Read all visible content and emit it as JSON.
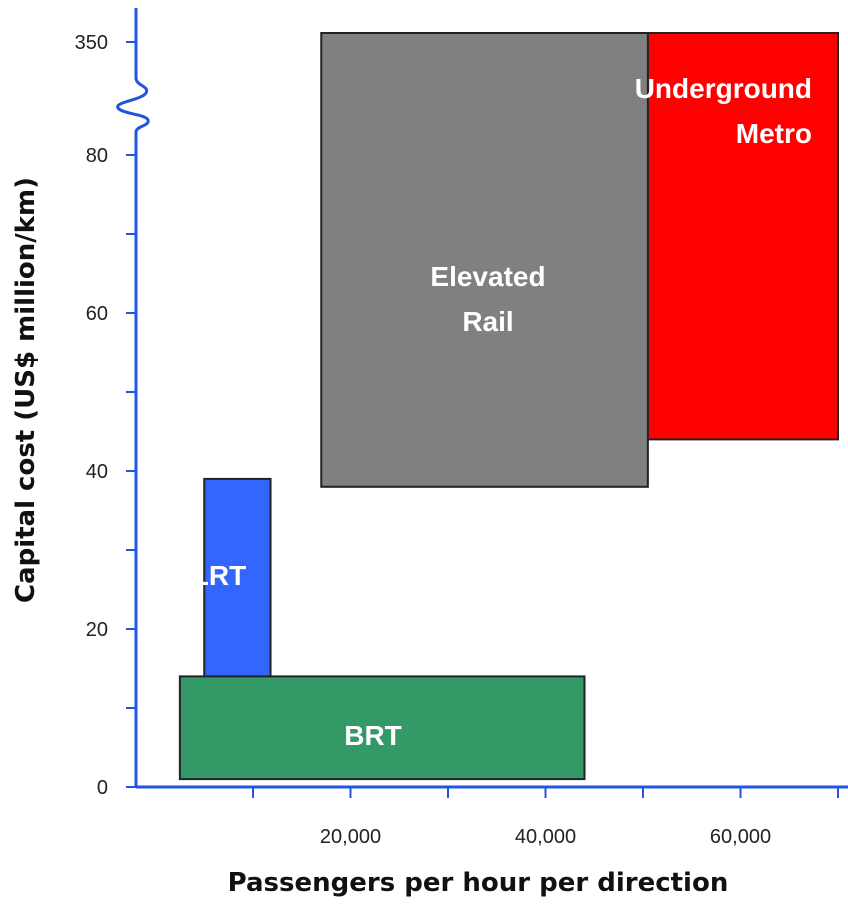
{
  "chart_data": {
    "type": "range-box",
    "xlabel": "Passengers per hour per direction",
    "ylabel": "Capital cost (US$ million/km)",
    "xlim": [
      -2000,
      70000
    ],
    "ylim": [
      0,
      80
    ],
    "x_ticks": [
      20000,
      40000,
      60000
    ],
    "x_tick_labels": [
      "20,000",
      "40,000",
      "60,000"
    ],
    "x_minor_ticks": [
      10000,
      30000,
      50000,
      70000
    ],
    "y_ticks": [
      0,
      20,
      40,
      60,
      80
    ],
    "y_tick_labels": [
      "0",
      "20",
      "40",
      "60",
      "80"
    ],
    "y_minor_ticks": [
      10,
      30,
      50,
      70
    ],
    "y_axis_break": {
      "above": 80,
      "label": "350"
    },
    "series": [
      {
        "name": "Underground Metro",
        "label_lines": [
          "Underground",
          "Metro"
        ],
        "x_range": [
          22500,
          70000
        ],
        "y_range": [
          44,
          350
        ],
        "color": "#ff0000"
      },
      {
        "name": "Elevated Rail",
        "label_lines": [
          "Elevated",
          "Rail"
        ],
        "x_range": [
          17000,
          50500
        ],
        "y_range": [
          38,
          83
        ],
        "color": "#808080"
      },
      {
        "name": "LRT",
        "label_lines": [
          "LRT"
        ],
        "x_range": [
          5000,
          11800
        ],
        "y_range": [
          12,
          39
        ],
        "color": "#3366ff"
      },
      {
        "name": "BRT",
        "label_lines": [
          "BRT"
        ],
        "x_range": [
          2500,
          44000
        ],
        "y_range": [
          1,
          14
        ],
        "color": "#339966"
      }
    ],
    "axis_color": "#2255dd",
    "grid": false,
    "legend": "none"
  }
}
